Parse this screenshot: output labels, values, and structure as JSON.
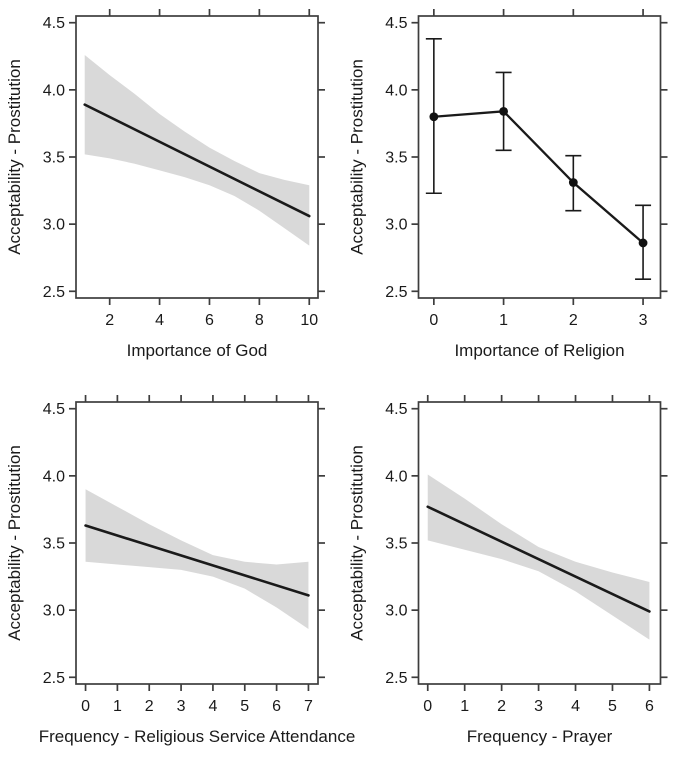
{
  "figure": {
    "name": "religiosity-vs-acceptability-prostitution-2x2",
    "background": "#ffffff"
  },
  "style": {
    "band_color": "#d9d9d9",
    "line_color": "#1a1a1a",
    "axis_color": "#3d3d3d",
    "text_color": "#1a1a1a",
    "marker_color": "#111111",
    "tick_length": 7,
    "tick_font_size": 16,
    "label_font_size": 17
  },
  "chart_data": [
    {
      "id": "importance-of-god",
      "type": "line",
      "subtype": "regression_with_ci_band",
      "title": "",
      "xlabel": "Importance of God",
      "ylabel": "Acceptability - Prostitution",
      "grid": false,
      "legend": null,
      "xlim": [
        0.65,
        10.35
      ],
      "ylim": [
        2.45,
        4.55
      ],
      "xticks": {
        "values": [
          2,
          4,
          6,
          8,
          10
        ],
        "labels": [
          "2",
          "4",
          "6",
          "8",
          "10"
        ]
      },
      "yticks": {
        "values": [
          2.5,
          3.0,
          3.5,
          4.0,
          4.5
        ],
        "labels": [
          "2.5",
          "3.0",
          "3.5",
          "4.0",
          "4.5"
        ]
      },
      "line": {
        "x": [
          1,
          10
        ],
        "y": [
          3.89,
          3.06
        ]
      },
      "band": {
        "x": [
          1,
          2,
          3,
          4,
          5,
          6,
          7,
          8,
          9,
          10
        ],
        "upper": [
          4.26,
          4.11,
          3.97,
          3.82,
          3.69,
          3.57,
          3.47,
          3.38,
          3.33,
          3.29
        ],
        "lower": [
          3.52,
          3.49,
          3.45,
          3.4,
          3.35,
          3.29,
          3.21,
          3.1,
          2.97,
          2.84
        ]
      }
    },
    {
      "id": "importance-of-religion",
      "type": "line",
      "subtype": "means_with_error_bars",
      "title": "",
      "xlabel": "Importance of Religion",
      "ylabel": "Acceptability - Prostitution",
      "grid": false,
      "legend": null,
      "xlim": [
        -0.22,
        3.25
      ],
      "ylim": [
        2.45,
        4.55
      ],
      "xticks": {
        "values": [
          0,
          1,
          2,
          3
        ],
        "labels": [
          "0",
          "1",
          "2",
          "3"
        ]
      },
      "yticks": {
        "values": [
          2.5,
          3.0,
          3.5,
          4.0,
          4.5
        ],
        "labels": [
          "2.5",
          "3.0",
          "3.5",
          "4.0",
          "4.5"
        ]
      },
      "points": {
        "x": [
          0,
          1,
          2,
          3
        ],
        "y": [
          3.8,
          3.84,
          3.31,
          2.86
        ],
        "ci_low": [
          3.23,
          3.55,
          3.1,
          2.59
        ],
        "ci_high": [
          4.38,
          4.13,
          3.51,
          3.14
        ]
      }
    },
    {
      "id": "frequency-religious-service-attendance",
      "type": "line",
      "subtype": "regression_with_ci_band",
      "title": "",
      "xlabel": "Frequency - Religious Service Attendance",
      "ylabel": "Acceptability - Prostitution",
      "grid": false,
      "legend": null,
      "xlim": [
        -0.3,
        7.3
      ],
      "ylim": [
        2.45,
        4.55
      ],
      "xticks": {
        "values": [
          0,
          1,
          2,
          3,
          4,
          5,
          6,
          7
        ],
        "labels": [
          "0",
          "1",
          "2",
          "3",
          "4",
          "5",
          "6",
          "7"
        ]
      },
      "yticks": {
        "values": [
          2.5,
          3.0,
          3.5,
          4.0,
          4.5
        ],
        "labels": [
          "2.5",
          "3.0",
          "3.5",
          "4.0",
          "4.5"
        ]
      },
      "line": {
        "x": [
          0,
          7
        ],
        "y": [
          3.63,
          3.11
        ]
      },
      "band": {
        "x": [
          0,
          1,
          2,
          3,
          4,
          5,
          6,
          7
        ],
        "upper": [
          3.9,
          3.77,
          3.64,
          3.52,
          3.41,
          3.36,
          3.34,
          3.36
        ],
        "lower": [
          3.36,
          3.34,
          3.32,
          3.3,
          3.25,
          3.16,
          3.02,
          2.86
        ]
      }
    },
    {
      "id": "frequency-prayer",
      "type": "line",
      "subtype": "regression_with_ci_band",
      "title": "",
      "xlabel": "Frequency - Prayer",
      "ylabel": "Acceptability - Prostitution",
      "grid": false,
      "legend": null,
      "xlim": [
        -0.25,
        6.3
      ],
      "ylim": [
        2.45,
        4.55
      ],
      "xticks": {
        "values": [
          0,
          1,
          2,
          3,
          4,
          5,
          6
        ],
        "labels": [
          "0",
          "1",
          "2",
          "3",
          "4",
          "5",
          "6"
        ]
      },
      "yticks": {
        "values": [
          2.5,
          3.0,
          3.5,
          4.0,
          4.5
        ],
        "labels": [
          "2.5",
          "3.0",
          "3.5",
          "4.0",
          "4.5"
        ]
      },
      "line": {
        "x": [
          0,
          6
        ],
        "y": [
          3.77,
          2.99
        ]
      },
      "band": {
        "x": [
          0,
          1,
          2,
          3,
          4,
          5,
          6
        ],
        "upper": [
          4.01,
          3.83,
          3.64,
          3.47,
          3.36,
          3.28,
          3.21
        ],
        "lower": [
          3.52,
          3.45,
          3.38,
          3.29,
          3.14,
          2.96,
          2.78
        ]
      }
    }
  ]
}
